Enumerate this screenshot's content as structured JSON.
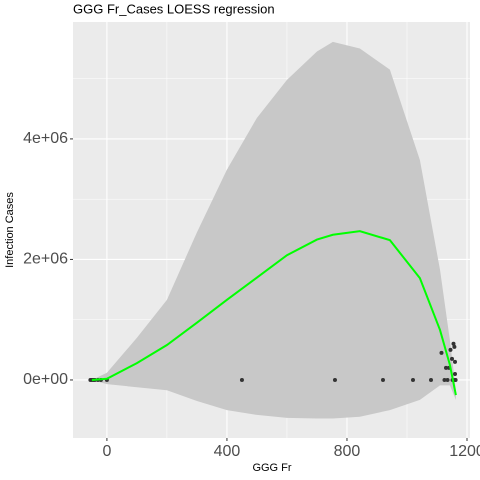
{
  "chart_data": {
    "type": "scatter",
    "title": "GGG Fr_Cases LOESS regression",
    "x_label": "GGG Fr",
    "y_label": "Infection Cases",
    "xlim": [
      -113,
      1210
    ],
    "ylim": [
      -963000,
      5940000
    ],
    "xticks": [
      0,
      400,
      800,
      1200
    ],
    "yticks": [
      {
        "value": 0,
        "label": "0e+00"
      },
      {
        "value": 2000000,
        "label": "2e+06"
      },
      {
        "value": 4000000,
        "label": "4e+06"
      }
    ],
    "grid": true,
    "points": {
      "color": "#333333",
      "x": [
        -55,
        -50,
        -45,
        -40,
        -30,
        -20,
        0,
        450,
        760,
        920,
        1020,
        1080,
        1115,
        1125,
        1130,
        1135,
        1140,
        1145,
        1150,
        1152,
        1155,
        1158,
        1160,
        1160,
        1160,
        1162
      ],
      "values": [
        0,
        0,
        0,
        0,
        0,
        0,
        0,
        0,
        0,
        0,
        0,
        0,
        450000,
        0,
        200000,
        0,
        200000,
        500000,
        350000,
        0,
        600000,
        550000,
        0,
        100000,
        300000,
        0
      ]
    },
    "fit": {
      "color": "#00ff00",
      "band_color": "#c8c8c8",
      "x": [
        -50,
        0,
        100,
        200,
        300,
        400,
        500,
        600,
        700,
        753,
        843,
        943,
        1043,
        1110,
        1143,
        1163
      ],
      "values": [
        0,
        20000,
        280000,
        580000,
        950000,
        1330000,
        1700000,
        2070000,
        2330000,
        2410000,
        2470000,
        2320000,
        1690000,
        830000,
        250000,
        -250000
      ],
      "lower": [
        0,
        -70000,
        -120000,
        -170000,
        -350000,
        -500000,
        -580000,
        -630000,
        -640000,
        -640000,
        -610000,
        -500000,
        -330000,
        -90000,
        -90000,
        -330000
      ],
      "upper": [
        0,
        120000,
        700000,
        1330000,
        2450000,
        3490000,
        4350000,
        4980000,
        5450000,
        5610000,
        5500000,
        5150000,
        3650000,
        1830000,
        660000,
        -170000
      ]
    }
  }
}
